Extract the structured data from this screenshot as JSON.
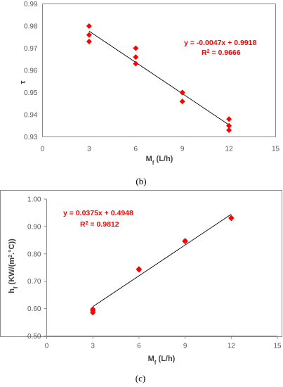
{
  "chart_data": [
    {
      "type": "scatter",
      "title": "",
      "xlabel": "M",
      "xlabel_sub": "f",
      "xlabel_unit": " (L/h)",
      "ylabel": "τ",
      "xlim": [
        0,
        15
      ],
      "ylim": [
        0.93,
        0.99
      ],
      "xticks": [
        "0",
        "3",
        "6",
        "9",
        "12",
        "15"
      ],
      "yticks": [
        "0.93",
        "0.94",
        "0.95",
        "0.96",
        "0.97",
        "0.98",
        "0.99"
      ],
      "x": [
        3,
        3,
        3,
        6,
        6,
        6,
        9,
        9,
        9,
        12,
        12,
        12
      ],
      "y": [
        0.98,
        0.976,
        0.973,
        0.97,
        0.966,
        0.963,
        0.95,
        0.95,
        0.946,
        0.938,
        0.935,
        0.933
      ],
      "trendline": {
        "slope": -0.0047,
        "intercept": 0.9918,
        "x_range": [
          3,
          12
        ]
      },
      "equation": "y = -0.0047x + 0.9918",
      "r2_prefix": "R",
      "r2_sup": "2",
      "r2_value": " = 0.9666",
      "grid": false,
      "marker_color": "#ff0000",
      "figure_label": "(b)"
    },
    {
      "type": "scatter",
      "title": "",
      "xlabel": "M",
      "xlabel_sub": "f",
      "xlabel_unit": " (L/h)",
      "ylabel": "h",
      "ylabel_sub": "f",
      "ylabel_unit": " (KW/(m",
      "ylabel_sup": "2",
      "ylabel_tail": ".°C))",
      "xlim": [
        0,
        15
      ],
      "ylim": [
        0.5,
        1.0
      ],
      "xticks": [
        "0",
        "3",
        "6",
        "9",
        "12",
        "15"
      ],
      "yticks": [
        "0.50",
        "0.60",
        "0.70",
        "0.80",
        "0.90",
        "1.00"
      ],
      "x": [
        3,
        3,
        3,
        6,
        6,
        9,
        9,
        12,
        12
      ],
      "y": [
        0.598,
        0.592,
        0.585,
        0.745,
        0.742,
        0.848,
        0.845,
        0.932,
        0.93
      ],
      "trendline": {
        "slope": 0.0375,
        "intercept": 0.4948,
        "x_range": [
          3,
          12
        ]
      },
      "equation": "y = 0.0375x + 0.4948",
      "r2_prefix": "R",
      "r2_sup": "2",
      "r2_value": " = 0.9812",
      "grid": false,
      "marker_color": "#ff0000",
      "figure_label": "(c)"
    }
  ]
}
